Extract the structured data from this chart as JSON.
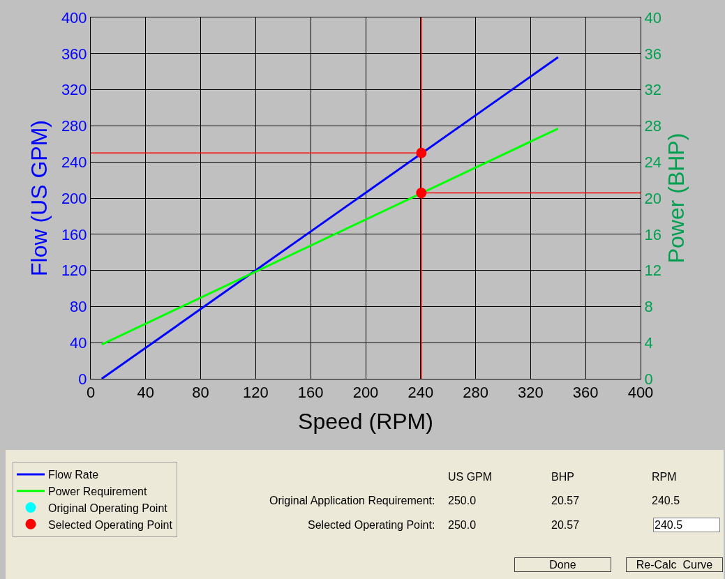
{
  "chart_data": {
    "type": "line",
    "xlabel": "Speed (RPM)",
    "ylabel": "Flow (US GPM)",
    "y2label": "Power (BHP)",
    "xlim": [
      0,
      400
    ],
    "xticks": [
      0,
      40,
      80,
      120,
      160,
      200,
      240,
      280,
      320,
      360,
      400
    ],
    "ylim": [
      0,
      400
    ],
    "yticks": [
      0,
      40,
      80,
      120,
      160,
      200,
      240,
      280,
      320,
      360,
      400
    ],
    "y2lim": [
      0,
      40
    ],
    "y2ticks": [
      0,
      4,
      8,
      12,
      16,
      20,
      24,
      28,
      32,
      36,
      40
    ],
    "grid": true,
    "legend": "bottom left",
    "series": [
      {
        "name": "Flow Rate",
        "color": "#0000ff",
        "x": [
          8,
          340
        ],
        "values": [
          0,
          356
        ]
      },
      {
        "name": "Power Requirement",
        "color": "#00ff00",
        "axis": "y2",
        "x": [
          8,
          340
        ],
        "values": [
          3.8,
          27.7
        ]
      },
      {
        "name": "Original Operating Point",
        "type": "scatter",
        "marker": "circle",
        "color": "#00ffff",
        "values": [
          null
        ]
      },
      {
        "name": "Selected Operating Point",
        "type": "scatter",
        "marker": "circle",
        "color": "#ff0000",
        "x": [
          240.5
        ],
        "values": [
          250
        ]
      },
      {
        "type": "scatter",
        "marker": "circle",
        "color": "#ff0000",
        "axis": "y2",
        "x": [
          240.5
        ],
        "values": [
          20.57
        ]
      }
    ],
    "ref_lines": [
      {
        "axis": "x",
        "value": 240.5,
        "color": "#ff0000"
      },
      {
        "axis": "y",
        "value": 250,
        "color": "#ff0000"
      },
      {
        "axis": "y2",
        "value": 20.57,
        "color": "#ff0000"
      }
    ],
    "annotations": [
      "US GPM",
      "BHP",
      "RPM",
      "Original Application Requirement:",
      "250.0",
      "20.57",
      "240.5",
      "Selected Operating Point:",
      "250.0",
      "20.57",
      "240.5",
      "Done",
      "Re-Calc  Curve"
    ]
  }
}
